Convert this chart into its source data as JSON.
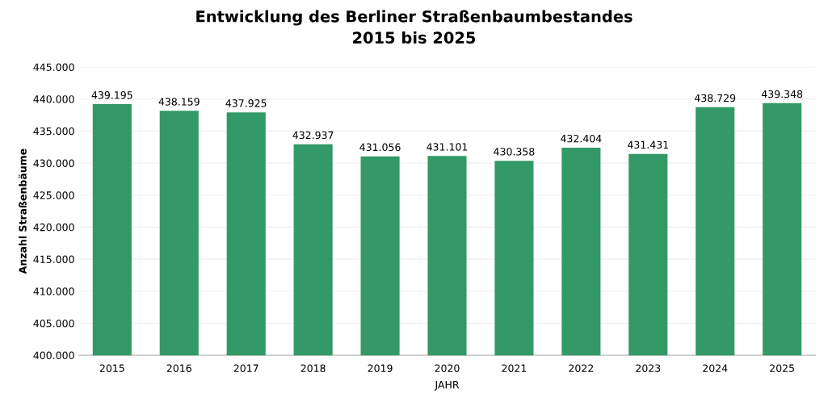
{
  "chart_data": {
    "type": "bar",
    "title": "Entwicklung des Berliner Straßenbaumbestandes\n2015 bis 2025",
    "xlabel": "JAHR",
    "ylabel": "Anzahl Straßenbäume",
    "categories": [
      "2015",
      "2016",
      "2017",
      "2018",
      "2019",
      "2020",
      "2021",
      "2022",
      "2023",
      "2024",
      "2025"
    ],
    "values": [
      439195,
      438159,
      437925,
      432937,
      431056,
      431101,
      430358,
      432404,
      431431,
      438729,
      439348
    ],
    "value_labels": [
      "439.195",
      "438.159",
      "437.925",
      "432.937",
      "431.056",
      "431.101",
      "430.358",
      "432.404",
      "431.431",
      "438.729",
      "439.348"
    ],
    "color": "#339966",
    "ylim": [
      400000,
      445000
    ],
    "yticks": [
      {
        "value": 400000,
        "label": "400.000"
      },
      {
        "value": 405000,
        "label": "405.000"
      },
      {
        "value": 410000,
        "label": "410.000"
      },
      {
        "value": 415000,
        "label": "415.000"
      },
      {
        "value": 420000,
        "label": "420.000"
      },
      {
        "value": 425000,
        "label": "425.000"
      },
      {
        "value": 430000,
        "label": "430.000"
      },
      {
        "value": 435000,
        "label": "435.000"
      },
      {
        "value": 440000,
        "label": "440.000"
      },
      {
        "value": 445000,
        "label": "445.000"
      }
    ],
    "grid": "y",
    "legend": false
  }
}
